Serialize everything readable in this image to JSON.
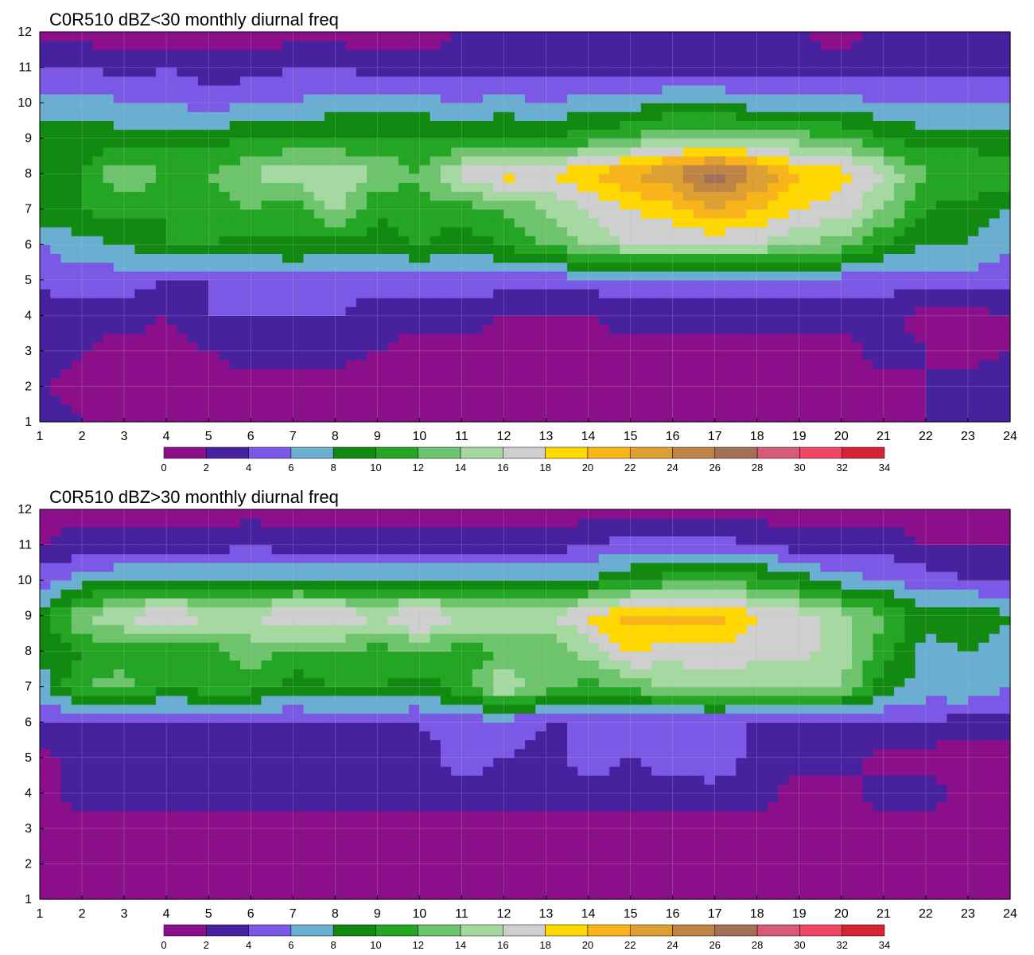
{
  "colors": {
    "level_palette": [
      "#8b0f8b",
      "#47219e",
      "#7b59e6",
      "#6aaed1",
      "#128a12",
      "#24a524",
      "#6dc46d",
      "#a6d9a2",
      "#cfcfcf",
      "#ffd800",
      "#f8b418",
      "#de9f32",
      "#be8446",
      "#a47055",
      "#d75a78",
      "#f04668",
      "#d42434"
    ],
    "contour_line": "#f0a020",
    "grid": "#bbbbbb"
  },
  "chart_data": [
    {
      "type": "heatmap",
      "subtype": "filled-contour",
      "title": "C0R510 dBZ<30 monthly diurnal freq",
      "xlabel": "",
      "ylabel": "",
      "xlim": [
        1,
        24
      ],
      "ylim": [
        1,
        12
      ],
      "x_ticks": [
        "1",
        "2",
        "3",
        "4",
        "5",
        "6",
        "7",
        "8",
        "9",
        "10",
        "11",
        "12",
        "13",
        "14",
        "15",
        "16",
        "17",
        "18",
        "19",
        "20",
        "21",
        "22",
        "23",
        "24"
      ],
      "y_ticks": [
        "1",
        "2",
        "3",
        "4",
        "5",
        "6",
        "7",
        "8",
        "9",
        "10",
        "11",
        "12"
      ],
      "colorbar_levels": [
        "0",
        "2",
        "4",
        "6",
        "8",
        "10",
        "12",
        "14",
        "16",
        "18",
        "20",
        "22",
        "24",
        "26",
        "28",
        "30",
        "32",
        "34"
      ],
      "grid": true,
      "values": [
        [
          3,
          2,
          1,
          1,
          2,
          1,
          1,
          1,
          0,
          1,
          1,
          1,
          1,
          1,
          1,
          1,
          1,
          1,
          1,
          1,
          1,
          2,
          3,
          4
        ],
        [
          2,
          1,
          1,
          1,
          1,
          1,
          1,
          1,
          0,
          1,
          1,
          1,
          1,
          1,
          1,
          1,
          1,
          1,
          1,
          1,
          1,
          2,
          3,
          4
        ],
        [
          3,
          2,
          1,
          1,
          2,
          3,
          3,
          3,
          2,
          1,
          1,
          1,
          1,
          1,
          1,
          1,
          1,
          1,
          1,
          1,
          3,
          2,
          1,
          2
        ],
        [
          2,
          3,
          3,
          2,
          4,
          4,
          4,
          4,
          3,
          3,
          3,
          2,
          2,
          2,
          3,
          3,
          3,
          3,
          3,
          3,
          3,
          1,
          1,
          2
        ],
        [
          5,
          5,
          5,
          4,
          4,
          5,
          5,
          5,
          5,
          5,
          5,
          5,
          5,
          5,
          5,
          5,
          5,
          5,
          5,
          5,
          5,
          5,
          5,
          5
        ],
        [
          6,
          7,
          8,
          10,
          10,
          9,
          10,
          9,
          9,
          10,
          9,
          10,
          12,
          14,
          16,
          16,
          16,
          16,
          14,
          13,
          10,
          8,
          8,
          6
        ],
        [
          9,
          10,
          11,
          10,
          11,
          12,
          10,
          15,
          10,
          11,
          11,
          12,
          14,
          16,
          18,
          19,
          22,
          20,
          18,
          17,
          14,
          10,
          9,
          8
        ],
        [
          8,
          10,
          14,
          12,
          12,
          14,
          16,
          16,
          14,
          12,
          17,
          19,
          18,
          20,
          22,
          24,
          28,
          24,
          20,
          19,
          16,
          12,
          12,
          11
        ],
        [
          9,
          9,
          9,
          9,
          9,
          10,
          10,
          10,
          10,
          10,
          10,
          10,
          10,
          11,
          12,
          14,
          14,
          14,
          13,
          12,
          10,
          9,
          9,
          9
        ],
        [
          7,
          7,
          6,
          6,
          5,
          6,
          6,
          7,
          7,
          7,
          6,
          7,
          6,
          7,
          7,
          8,
          8,
          7,
          7,
          7,
          6,
          6,
          6,
          6
        ],
        [
          4,
          4,
          3,
          4,
          3,
          3,
          4,
          4,
          3,
          3,
          3,
          3,
          3,
          3,
          3,
          3,
          3,
          3,
          3,
          3,
          3,
          3,
          3,
          3
        ],
        [
          1,
          1,
          1,
          0,
          1,
          1,
          1,
          1,
          1,
          1,
          2,
          2,
          2,
          2,
          2,
          2,
          2,
          2,
          2,
          1,
          3,
          3,
          3,
          3
        ]
      ]
    },
    {
      "type": "heatmap",
      "subtype": "filled-contour",
      "title": "C0R510 dBZ>30 monthly diurnal freq",
      "xlabel": "",
      "ylabel": "",
      "xlim": [
        1,
        24
      ],
      "ylim": [
        1,
        12
      ],
      "x_ticks": [
        "1",
        "2",
        "3",
        "4",
        "5",
        "6",
        "7",
        "8",
        "9",
        "10",
        "11",
        "12",
        "13",
        "14",
        "15",
        "16",
        "17",
        "18",
        "19",
        "20",
        "21",
        "22",
        "23",
        "24"
      ],
      "y_ticks": [
        "1",
        "2",
        "3",
        "4",
        "5",
        "6",
        "7",
        "8",
        "9",
        "10",
        "11",
        "12"
      ],
      "colorbar_levels": [
        "0",
        "2",
        "4",
        "6",
        "8",
        "10",
        "12",
        "14",
        "16",
        "18",
        "20",
        "22",
        "24",
        "26",
        "28",
        "30",
        "32",
        "34"
      ],
      "grid": true,
      "values": [
        [
          1,
          1,
          1,
          1,
          1,
          1,
          1,
          1,
          1,
          1,
          1,
          1,
          1,
          1,
          1,
          1,
          1,
          1,
          1,
          1,
          1,
          1,
          1,
          1
        ],
        [
          1,
          1,
          1,
          1,
          1,
          1,
          1,
          1,
          1,
          1,
          1,
          1,
          1,
          1,
          1,
          1,
          1,
          1,
          1,
          1,
          1,
          1,
          1,
          1
        ],
        [
          1,
          1,
          1,
          1,
          1,
          1,
          1,
          1,
          1,
          1,
          1,
          1,
          1,
          1,
          1,
          1,
          1,
          1,
          1,
          1,
          1,
          1,
          1,
          1
        ],
        [
          1,
          3,
          3,
          3,
          3,
          3,
          3,
          3,
          3,
          3,
          3,
          3,
          3,
          3,
          3,
          3,
          3,
          3,
          1,
          1,
          3,
          3,
          1,
          1
        ],
        [
          1,
          3,
          3,
          3,
          3,
          4,
          3,
          4,
          3,
          3,
          5,
          4,
          3,
          5,
          4,
          5,
          6,
          3,
          3,
          3,
          1,
          1,
          1,
          1
        ],
        [
          4,
          4,
          4,
          4,
          4,
          4,
          4,
          4,
          4,
          4,
          5,
          5,
          4,
          4,
          4,
          4,
          4,
          4,
          4,
          4,
          4,
          4,
          3,
          3
        ],
        [
          7,
          12,
          13,
          10,
          11,
          11,
          9,
          10,
          10,
          9,
          11,
          16,
          13,
          11,
          13,
          14,
          15,
          14,
          14,
          14,
          9,
          7,
          8,
          6
        ],
        [
          8,
          10,
          11,
          10,
          11,
          13,
          11,
          12,
          11,
          12,
          11,
          12,
          12,
          15,
          18,
          17,
          17,
          17,
          17,
          15,
          11,
          7,
          8,
          7
        ],
        [
          9,
          14,
          16,
          19,
          16,
          16,
          19,
          18,
          16,
          19,
          16,
          16,
          16,
          18,
          21,
          21,
          21,
          18,
          17,
          15,
          12,
          9,
          10,
          8
        ],
        [
          5,
          7,
          8,
          8,
          8,
          8,
          8,
          8,
          8,
          8,
          8,
          8,
          8,
          8,
          10,
          11,
          11,
          11,
          9,
          7,
          6,
          5,
          4,
          4
        ],
        [
          2,
          3,
          3,
          3,
          3,
          4,
          3,
          3,
          3,
          3,
          3,
          3,
          3,
          4,
          5,
          5,
          5,
          4,
          3,
          3,
          3,
          2,
          2,
          2
        ],
        [
          1,
          1,
          1,
          1,
          1,
          1,
          1,
          1,
          1,
          1,
          1,
          1,
          1,
          1,
          1,
          1,
          1,
          1,
          1,
          1,
          1,
          1,
          1,
          1
        ]
      ]
    }
  ]
}
